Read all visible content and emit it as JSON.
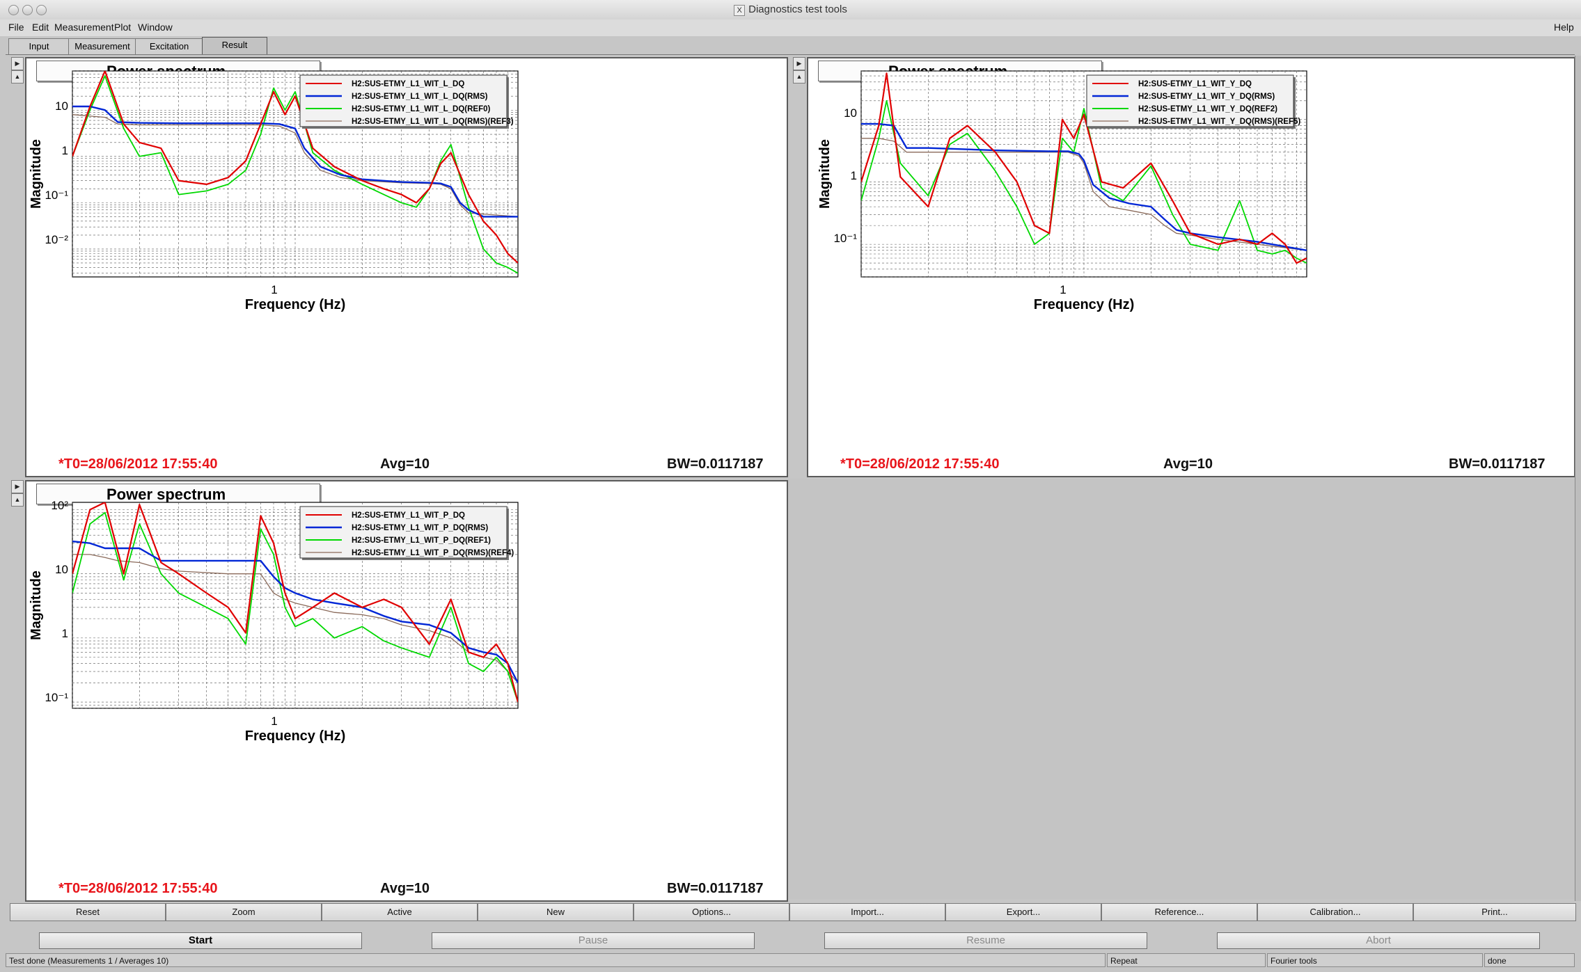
{
  "window": {
    "title": "Diagnostics test tools"
  },
  "menu": {
    "items": [
      {
        "label": "File"
      },
      {
        "label": "Edit"
      },
      {
        "label": "Measurement"
      },
      {
        "label": "Plot"
      },
      {
        "label": "Window"
      }
    ],
    "help": "Help"
  },
  "tabs": [
    {
      "label": "Input"
    },
    {
      "label": "Measurement"
    },
    {
      "label": "Excitation"
    },
    {
      "label": "Result",
      "active": true
    }
  ],
  "panels": [
    {
      "title": "Power spectrum",
      "ylabel": "Magnitude",
      "xlabel": "Frequency (Hz)",
      "xtick_label": "1",
      "ytick_labels": [
        "10",
        "1",
        "10⁻¹",
        "10⁻²"
      ],
      "t0": "*T0=28/06/2012 17:55:40",
      "avg": "Avg=10",
      "bw": "BW=0.0117187",
      "legend": [
        {
          "name": "H2:SUS-ETMY_L1_WIT_L_DQ",
          "color": "#e00000"
        },
        {
          "name": "H2:SUS-ETMY_L1_WIT_L_DQ(RMS)",
          "color": "#0026d6"
        },
        {
          "name": "H2:SUS-ETMY_L1_WIT_L_DQ(REF0)",
          "color": "#00d800"
        },
        {
          "name": "H2:SUS-ETMY_L1_WIT_L_DQ(RMS)(REF3)",
          "color": "#8a6a5a"
        }
      ]
    },
    {
      "title": "Power spectrum",
      "ylabel": "Magnitude",
      "xlabel": "Frequency (Hz)",
      "xtick_label": "1",
      "ytick_labels": [
        "10",
        "1",
        "10⁻¹"
      ],
      "t0": "*T0=28/06/2012 17:55:40",
      "avg": "Avg=10",
      "bw": "BW=0.0117187",
      "legend": [
        {
          "name": "H2:SUS-ETMY_L1_WIT_Y_DQ",
          "color": "#e00000"
        },
        {
          "name": "H2:SUS-ETMY_L1_WIT_Y_DQ(RMS)",
          "color": "#0026d6"
        },
        {
          "name": "H2:SUS-ETMY_L1_WIT_Y_DQ(REF2)",
          "color": "#00d800"
        },
        {
          "name": "H2:SUS-ETMY_L1_WIT_Y_DQ(RMS)(REF5)",
          "color": "#8a6a5a"
        }
      ]
    },
    {
      "title": "Power spectrum",
      "ylabel": "Magnitude",
      "xlabel": "Frequency (Hz)",
      "xtick_label": "1",
      "ytick_labels": [
        "10²",
        "10",
        "1",
        "10⁻¹"
      ],
      "t0": "*T0=28/06/2012 17:55:40",
      "avg": "Avg=10",
      "bw": "BW=0.0117187",
      "legend": [
        {
          "name": "H2:SUS-ETMY_L1_WIT_P_DQ",
          "color": "#e00000"
        },
        {
          "name": "H2:SUS-ETMY_L1_WIT_P_DQ(RMS)",
          "color": "#0026d6"
        },
        {
          "name": "H2:SUS-ETMY_L1_WIT_P_DQ(REF1)",
          "color": "#00d800"
        },
        {
          "name": "H2:SUS-ETMY_L1_WIT_P_DQ(RMS)(REF4)",
          "color": "#8a6a5a"
        }
      ]
    }
  ],
  "chart_data": [
    {
      "type": "line",
      "title": "Power spectrum",
      "xlabel": "Frequency (Hz)",
      "ylabel": "Magnitude",
      "xscale": "log",
      "yscale": "log",
      "xlim": [
        0.1,
        10
      ],
      "ylim": [
        0.0025,
        70
      ],
      "grid": true,
      "legend_position": "top-right",
      "series": [
        {
          "name": "H2:SUS-ETMY_L1_WIT_L_DQ",
          "x": [
            0.1,
            0.12,
            0.14,
            0.17,
            0.2,
            0.25,
            0.3,
            0.4,
            0.5,
            0.6,
            0.7,
            0.8,
            0.9,
            1.0,
            1.2,
            1.5,
            2,
            2.5,
            3,
            3.5,
            4,
            4.5,
            5,
            6,
            7,
            8,
            9,
            10
          ],
          "y": [
            1,
            12,
            70,
            5,
            2,
            1.5,
            0.3,
            0.25,
            0.35,
            0.8,
            5,
            25,
            8,
            20,
            1.5,
            0.6,
            0.3,
            0.2,
            0.15,
            0.1,
            0.2,
            0.7,
            1.2,
            0.15,
            0.04,
            0.02,
            0.008,
            0.005
          ]
        },
        {
          "name": "H2:SUS-ETMY_L1_WIT_L_DQ(RMS)",
          "x": [
            0.1,
            0.12,
            0.14,
            0.16,
            0.2,
            0.3,
            0.5,
            0.7,
            0.85,
            1.0,
            1.1,
            1.3,
            1.6,
            2,
            3,
            4,
            4.5,
            5,
            5.5,
            6,
            7,
            10
          ],
          "y": [
            12,
            12,
            10,
            5.5,
            5.3,
            5.2,
            5.2,
            5.2,
            5.0,
            4.0,
            1.5,
            0.6,
            0.4,
            0.32,
            0.28,
            0.27,
            0.26,
            0.22,
            0.1,
            0.07,
            0.05,
            0.05
          ]
        },
        {
          "name": "H2:SUS-ETMY_L1_WIT_L_DQ(REF0)",
          "x": [
            0.1,
            0.12,
            0.14,
            0.17,
            0.2,
            0.25,
            0.3,
            0.4,
            0.5,
            0.6,
            0.7,
            0.8,
            0.9,
            1.0,
            1.2,
            1.5,
            2,
            2.5,
            3,
            3.5,
            4,
            4.5,
            5,
            6,
            7,
            8,
            9,
            10
          ],
          "y": [
            1,
            10,
            55,
            4,
            1,
            1.2,
            0.15,
            0.18,
            0.25,
            0.5,
            3,
            30,
            10,
            25,
            1.2,
            0.5,
            0.25,
            0.15,
            0.1,
            0.08,
            0.2,
            0.8,
            1.8,
            0.08,
            0.01,
            0.005,
            0.004,
            0.003
          ]
        },
        {
          "name": "H2:SUS-ETMY_L1_WIT_L_DQ(RMS)(REF3)",
          "x": [
            0.1,
            0.14,
            0.16,
            0.2,
            0.3,
            0.5,
            0.7,
            0.85,
            1.0,
            1.1,
            1.3,
            1.6,
            2,
            3,
            4,
            4.5,
            5,
            5.5,
            6,
            10
          ],
          "y": [
            8,
            7,
            5,
            4.8,
            4.8,
            4.8,
            4.8,
            4.5,
            3.2,
            1.2,
            0.5,
            0.35,
            0.3,
            0.27,
            0.26,
            0.25,
            0.2,
            0.09,
            0.06,
            0.05
          ]
        }
      ]
    },
    {
      "type": "line",
      "title": "Power spectrum",
      "xlabel": "Frequency (Hz)",
      "ylabel": "Magnitude",
      "xscale": "log",
      "yscale": "log",
      "xlim": [
        0.1,
        10
      ],
      "ylim": [
        0.03,
        60
      ],
      "grid": true,
      "legend_position": "top-right",
      "series": [
        {
          "name": "H2:SUS-ETMY_L1_WIT_Y_DQ",
          "x": [
            0.1,
            0.12,
            0.13,
            0.15,
            0.2,
            0.25,
            0.3,
            0.4,
            0.5,
            0.6,
            0.7,
            0.8,
            0.9,
            1.0,
            1.2,
            1.5,
            2,
            2.5,
            3,
            4,
            5,
            6,
            7,
            8,
            9,
            10
          ],
          "y": [
            1,
            8,
            55,
            1.2,
            0.4,
            5,
            8,
            3,
            1,
            0.2,
            0.15,
            10,
            5,
            12,
            1,
            0.8,
            2,
            0.5,
            0.15,
            0.1,
            0.12,
            0.1,
            0.15,
            0.1,
            0.05,
            0.06
          ]
        },
        {
          "name": "H2:SUS-ETMY_L1_WIT_Y_DQ(RMS)",
          "x": [
            0.1,
            0.12,
            0.14,
            0.16,
            0.2,
            0.4,
            0.7,
            0.85,
            0.95,
            1.0,
            1.1,
            1.3,
            1.6,
            2,
            2.3,
            2.6,
            3,
            4,
            6,
            10
          ],
          "y": [
            8.5,
            8.5,
            8,
            3.5,
            3.5,
            3.2,
            3.1,
            3.1,
            2.8,
            2.2,
            0.9,
            0.55,
            0.45,
            0.4,
            0.25,
            0.17,
            0.15,
            0.13,
            0.11,
            0.08
          ]
        },
        {
          "name": "H2:SUS-ETMY_L1_WIT_Y_DQ(REF2)",
          "x": [
            0.1,
            0.12,
            0.13,
            0.15,
            0.2,
            0.25,
            0.3,
            0.4,
            0.5,
            0.6,
            0.7,
            0.8,
            0.9,
            1.0,
            1.2,
            1.5,
            2,
            2.5,
            3,
            4,
            5,
            6,
            7,
            8,
            9,
            10
          ],
          "y": [
            0.5,
            5,
            20,
            2,
            0.6,
            4,
            6,
            1.5,
            0.4,
            0.1,
            0.15,
            5,
            3,
            15,
            0.8,
            0.5,
            1.8,
            0.3,
            0.1,
            0.08,
            0.5,
            0.08,
            0.07,
            0.08,
            0.06,
            0.05
          ]
        },
        {
          "name": "H2:SUS-ETMY_L1_WIT_Y_DQ(RMS)(REF5)",
          "x": [
            0.1,
            0.12,
            0.14,
            0.16,
            0.2,
            0.4,
            0.7,
            0.85,
            0.95,
            1.0,
            1.1,
            1.3,
            1.6,
            2,
            2.3,
            2.6,
            3,
            4,
            6,
            10
          ],
          "y": [
            5,
            5,
            4.5,
            3,
            3,
            3,
            3,
            3,
            2.6,
            2,
            0.7,
            0.4,
            0.35,
            0.3,
            0.2,
            0.15,
            0.14,
            0.12,
            0.1,
            0.08
          ]
        }
      ]
    },
    {
      "type": "line",
      "title": "Power spectrum",
      "xlabel": "Frequency (Hz)",
      "ylabel": "Magnitude",
      "xscale": "log",
      "yscale": "log",
      "xlim": [
        0.1,
        10
      ],
      "ylim": [
        0.08,
        130
      ],
      "grid": true,
      "legend_position": "top-right",
      "series": [
        {
          "name": "H2:SUS-ETMY_L1_WIT_P_DQ",
          "x": [
            0.1,
            0.12,
            0.14,
            0.17,
            0.2,
            0.25,
            0.3,
            0.4,
            0.5,
            0.6,
            0.7,
            0.8,
            0.9,
            1.0,
            1.2,
            1.5,
            2,
            2.5,
            3,
            4,
            5,
            6,
            7,
            8,
            9,
            10
          ],
          "y": [
            10,
            100,
            130,
            10,
            120,
            15,
            10,
            5,
            3,
            1.2,
            80,
            30,
            5,
            2,
            3,
            5,
            3,
            4,
            3,
            0.8,
            4,
            0.6,
            0.5,
            0.8,
            0.4,
            0.1
          ]
        },
        {
          "name": "H2:SUS-ETMY_L1_WIT_P_DQ(RMS)",
          "x": [
            0.1,
            0.12,
            0.14,
            0.16,
            0.2,
            0.25,
            0.3,
            0.5,
            0.7,
            0.8,
            0.9,
            1.0,
            1.2,
            1.5,
            2,
            2.5,
            3,
            4,
            5,
            6,
            7,
            8,
            9,
            10
          ],
          "y": [
            32,
            30,
            25,
            25,
            25,
            16,
            16,
            16,
            16,
            9,
            6,
            5,
            4,
            3.5,
            3,
            2.2,
            1.8,
            1.6,
            1.2,
            0.7,
            0.6,
            0.55,
            0.4,
            0.2
          ]
        },
        {
          "name": "H2:SUS-ETMY_L1_WIT_P_DQ(REF1)",
          "x": [
            0.1,
            0.12,
            0.14,
            0.17,
            0.2,
            0.25,
            0.3,
            0.4,
            0.5,
            0.6,
            0.7,
            0.8,
            0.9,
            1.0,
            1.2,
            1.5,
            2,
            2.5,
            3,
            4,
            5,
            6,
            7,
            8,
            9,
            10
          ],
          "y": [
            5,
            60,
            90,
            8,
            60,
            10,
            5,
            3,
            2,
            0.8,
            50,
            20,
            3,
            1.5,
            2,
            1,
            1.5,
            0.9,
            0.7,
            0.5,
            3,
            0.4,
            0.3,
            0.5,
            0.3,
            0.1
          ]
        },
        {
          "name": "H2:SUS-ETMY_L1_WIT_P_DQ(RMS)(REF4)",
          "x": [
            0.1,
            0.12,
            0.14,
            0.16,
            0.2,
            0.25,
            0.3,
            0.5,
            0.7,
            0.8,
            0.9,
            1.0,
            1.2,
            1.5,
            2,
            2.5,
            3,
            4,
            5,
            6,
            7,
            8,
            9,
            10
          ],
          "y": [
            20,
            20,
            18,
            16,
            15,
            12,
            11,
            10,
            10,
            5,
            4,
            3.5,
            3,
            2.5,
            2.3,
            2,
            1.6,
            1.3,
            1,
            0.6,
            0.5,
            0.45,
            0.3,
            0.2
          ]
        }
      ]
    }
  ],
  "toolbar": {
    "buttons": [
      "Reset",
      "Zoom",
      "Active",
      "New",
      "Options...",
      "Import...",
      "Export...",
      "Reference...",
      "Calibration...",
      "Print..."
    ]
  },
  "actions": {
    "start": "Start",
    "pause": "Pause",
    "resume": "Resume",
    "abort": "Abort"
  },
  "statusbar": {
    "message": "Test done (Measurements 1 / Averages 10)",
    "repeat": "Repeat",
    "tool": "Fourier tools",
    "state": "done"
  }
}
